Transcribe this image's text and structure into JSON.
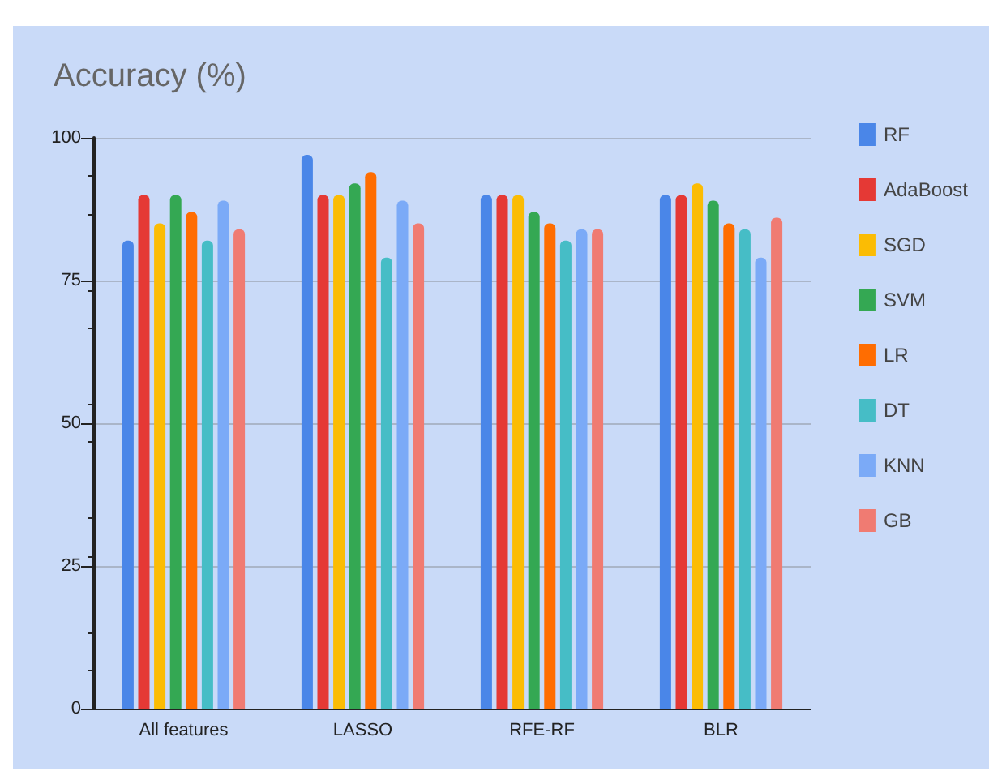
{
  "chart_data": {
    "type": "bar",
    "title": "Accuracy (%)",
    "categories": [
      "All features",
      "LASSO",
      "RFE-RF",
      "BLR"
    ],
    "series": [
      {
        "name": "RF",
        "color": "#4a86e8",
        "values": [
          82,
          97,
          90,
          90
        ]
      },
      {
        "name": "AdaBoost",
        "color": "#e53935",
        "values": [
          90,
          90,
          90,
          90
        ]
      },
      {
        "name": "SGD",
        "color": "#fbbc04",
        "values": [
          85,
          90,
          90,
          92
        ]
      },
      {
        "name": "SVM",
        "color": "#34a853",
        "values": [
          90,
          92,
          87,
          89
        ]
      },
      {
        "name": "LR",
        "color": "#ff6d01",
        "values": [
          87,
          94,
          85,
          85
        ]
      },
      {
        "name": "DT",
        "color": "#46bdc6",
        "values": [
          82,
          79,
          82,
          84
        ]
      },
      {
        "name": "KNN",
        "color": "#7baaf7",
        "values": [
          89,
          89,
          84,
          79
        ]
      },
      {
        "name": "GB",
        "color": "#f07b72",
        "values": [
          84,
          85,
          84,
          86
        ]
      }
    ],
    "ylim": [
      0,
      100
    ],
    "yticks": [
      0,
      25,
      50,
      75,
      100
    ],
    "grid": "y",
    "legend": "right"
  }
}
